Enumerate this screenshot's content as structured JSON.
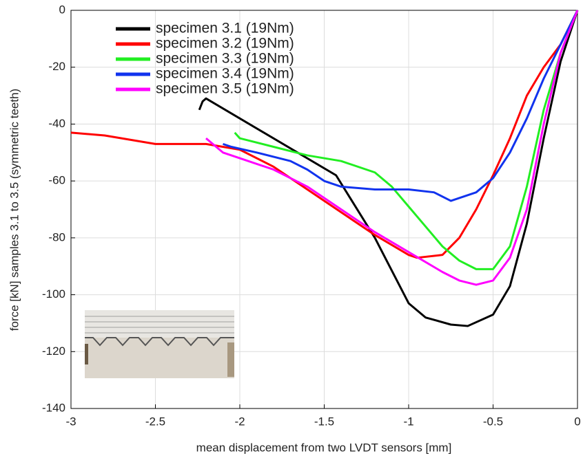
{
  "chart_data": {
    "type": "line",
    "xlabel": "mean displacement from two LVDT sensors [mm]",
    "ylabel": "force [kN] samples 3.1 to 3.5 (symmetric teeth)",
    "xlim": [
      -3,
      0
    ],
    "ylim": [
      -140,
      0
    ],
    "xticks": [
      -3,
      -2.5,
      -2,
      -1.5,
      -1,
      -0.5,
      0
    ],
    "yticks": [
      -140,
      -120,
      -100,
      -80,
      -60,
      -40,
      -20,
      0
    ],
    "grid": true,
    "legend": "upper left",
    "series": [
      {
        "name": "specimen 3.1 (19Nm)",
        "color": "#000000",
        "x": [
          -2.24,
          -2.22,
          -2.2,
          -1.43,
          -1.2,
          -1.0,
          -0.9,
          -0.75,
          -0.65,
          -0.5,
          -0.4,
          -0.3,
          -0.2,
          -0.1,
          0
        ],
        "values": [
          -35,
          -32,
          -31,
          -58,
          -80,
          -103,
          -108,
          -110.5,
          -111,
          -107,
          -97,
          -75,
          -45,
          -18,
          0
        ]
      },
      {
        "name": "specimen 3.2 (19Nm)",
        "color": "#ff0000",
        "x": [
          -3,
          -2.8,
          -2.5,
          -2.2,
          -2.0,
          -1.8,
          -1.6,
          -1.4,
          -1.2,
          -1.0,
          -0.95,
          -0.8,
          -0.7,
          -0.6,
          -0.5,
          -0.4,
          -0.3,
          -0.2,
          -0.1,
          0
        ],
        "values": [
          -43,
          -44,
          -47,
          -47,
          -49,
          -55,
          -63,
          -71,
          -79,
          -86,
          -87,
          -86,
          -80,
          -70,
          -58,
          -45,
          -30,
          -20,
          -12,
          0
        ]
      },
      {
        "name": "specimen 3.3 (19Nm)",
        "color": "#22ee22",
        "x": [
          -2.03,
          -2.0,
          -1.8,
          -1.6,
          -1.4,
          -1.2,
          -1.1,
          -1.0,
          -0.9,
          -0.8,
          -0.7,
          -0.6,
          -0.5,
          -0.4,
          -0.3,
          -0.2,
          -0.1,
          0
        ],
        "values": [
          -43,
          -45,
          -48,
          -51,
          -53,
          -57,
          -62,
          -69,
          -76,
          -83,
          -88,
          -91,
          -91,
          -83,
          -62,
          -35,
          -15,
          0
        ]
      },
      {
        "name": "specimen 3.4 (19Nm)",
        "color": "#1133ee",
        "x": [
          -2.1,
          -2.05,
          -1.9,
          -1.7,
          -1.6,
          -1.5,
          -1.4,
          -1.2,
          -1.0,
          -0.85,
          -0.75,
          -0.6,
          -0.5,
          -0.4,
          -0.3,
          -0.2,
          -0.1,
          0
        ],
        "values": [
          -47,
          -48,
          -50,
          -53,
          -56,
          -60,
          -62,
          -63,
          -63,
          -64,
          -67,
          -64,
          -59,
          -50,
          -38,
          -24,
          -12,
          0
        ]
      },
      {
        "name": "specimen 3.5 (19Nm)",
        "color": "#ff00ff",
        "x": [
          -2.2,
          -2.1,
          -2.0,
          -1.8,
          -1.6,
          -1.4,
          -1.2,
          -1.0,
          -0.8,
          -0.7,
          -0.6,
          -0.5,
          -0.4,
          -0.3,
          -0.2,
          -0.1,
          0
        ],
        "values": [
          -45,
          -50,
          -52,
          -56,
          -62,
          -70,
          -78,
          -85,
          -92,
          -95,
          -96.5,
          -95,
          -87,
          -70,
          -40,
          -15,
          0
        ]
      }
    ]
  }
}
